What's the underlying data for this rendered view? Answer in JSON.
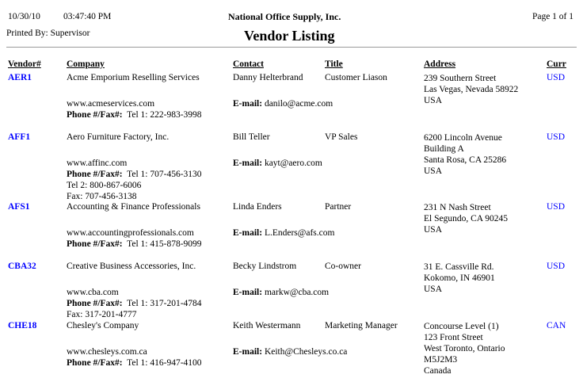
{
  "header": {
    "date": "10/30/10",
    "time": "03:47:40 PM",
    "company": "National Office Supply, Inc.",
    "page": "Page 1 of 1",
    "printed_by": "Printed By: Supervisor",
    "report_title": "Vendor Listing"
  },
  "columns": {
    "vendor": "Vendor#",
    "company": "Company",
    "contact": "Contact",
    "title": "Title",
    "address": "Address",
    "curr": "Curr"
  },
  "labels": {
    "email": "E-mail:",
    "phone": "Phone #/Fax#:"
  },
  "colors": {
    "link": "#0000ff"
  },
  "vendors": [
    {
      "id": "AER1",
      "company": "Acme Emporium Reselling Services",
      "web": "www.acmeservices.com",
      "phones": [
        "Tel 1: 222-983-3998"
      ],
      "contact": "Danny Helterbrand",
      "title": "Customer Liason",
      "email": "danilo@acme.com",
      "address": [
        "239 Southern Street",
        "Las Vegas, Nevada 58922",
        "USA"
      ],
      "curr": "USD"
    },
    {
      "id": "AFF1",
      "company": "Aero Furniture Factory, Inc.",
      "web": "www.affinc.com",
      "phones": [
        "Tel 1: 707-456-3130",
        "Tel 2: 800-867-6006",
        "Fax: 707-456-3138"
      ],
      "contact": "Bill Teller",
      "title": "VP Sales",
      "email": "kayt@aero.com",
      "address": [
        "6200 Lincoln Avenue",
        "Building A",
        "Santa Rosa, CA 25286",
        "USA"
      ],
      "curr": "USD"
    },
    {
      "id": "AFS1",
      "company": "Accounting & Finance Professionals",
      "web": "www.accountingprofessionals.com",
      "phones": [
        "Tel 1: 415-878-9099"
      ],
      "contact": "Linda Enders",
      "title": "Partner",
      "email": "L.Enders@afs.com",
      "address": [
        "231 N Nash Street",
        "El Segundo, CA 90245",
        "USA"
      ],
      "curr": "USD"
    },
    {
      "id": "CBA32",
      "company": "Creative Business Accessories, Inc.",
      "web": "www.cba.com",
      "phones": [
        "Tel 1: 317-201-4784",
        "Fax: 317-201-4777"
      ],
      "contact": "Becky Lindstrom",
      "title": "Co-owner",
      "email": "markw@cba.com",
      "address": [
        "31 E. Cassville Rd.",
        "Kokomo, IN 46901",
        "USA"
      ],
      "curr": "USD"
    },
    {
      "id": "CHE18",
      "company": "Chesley's Company",
      "web": "www.chesleys.com.ca",
      "phones": [
        "Tel 1: 416-947-4100"
      ],
      "contact": "Keith Westermann",
      "title": "Marketing Manager",
      "email": "Keith@Chesleys.co.ca",
      "address": [
        "Concourse Level (1)",
        "123 Front Street",
        "West Toronto, Ontario",
        "M5J2M3",
        "Canada"
      ],
      "curr": "CAN"
    }
  ]
}
